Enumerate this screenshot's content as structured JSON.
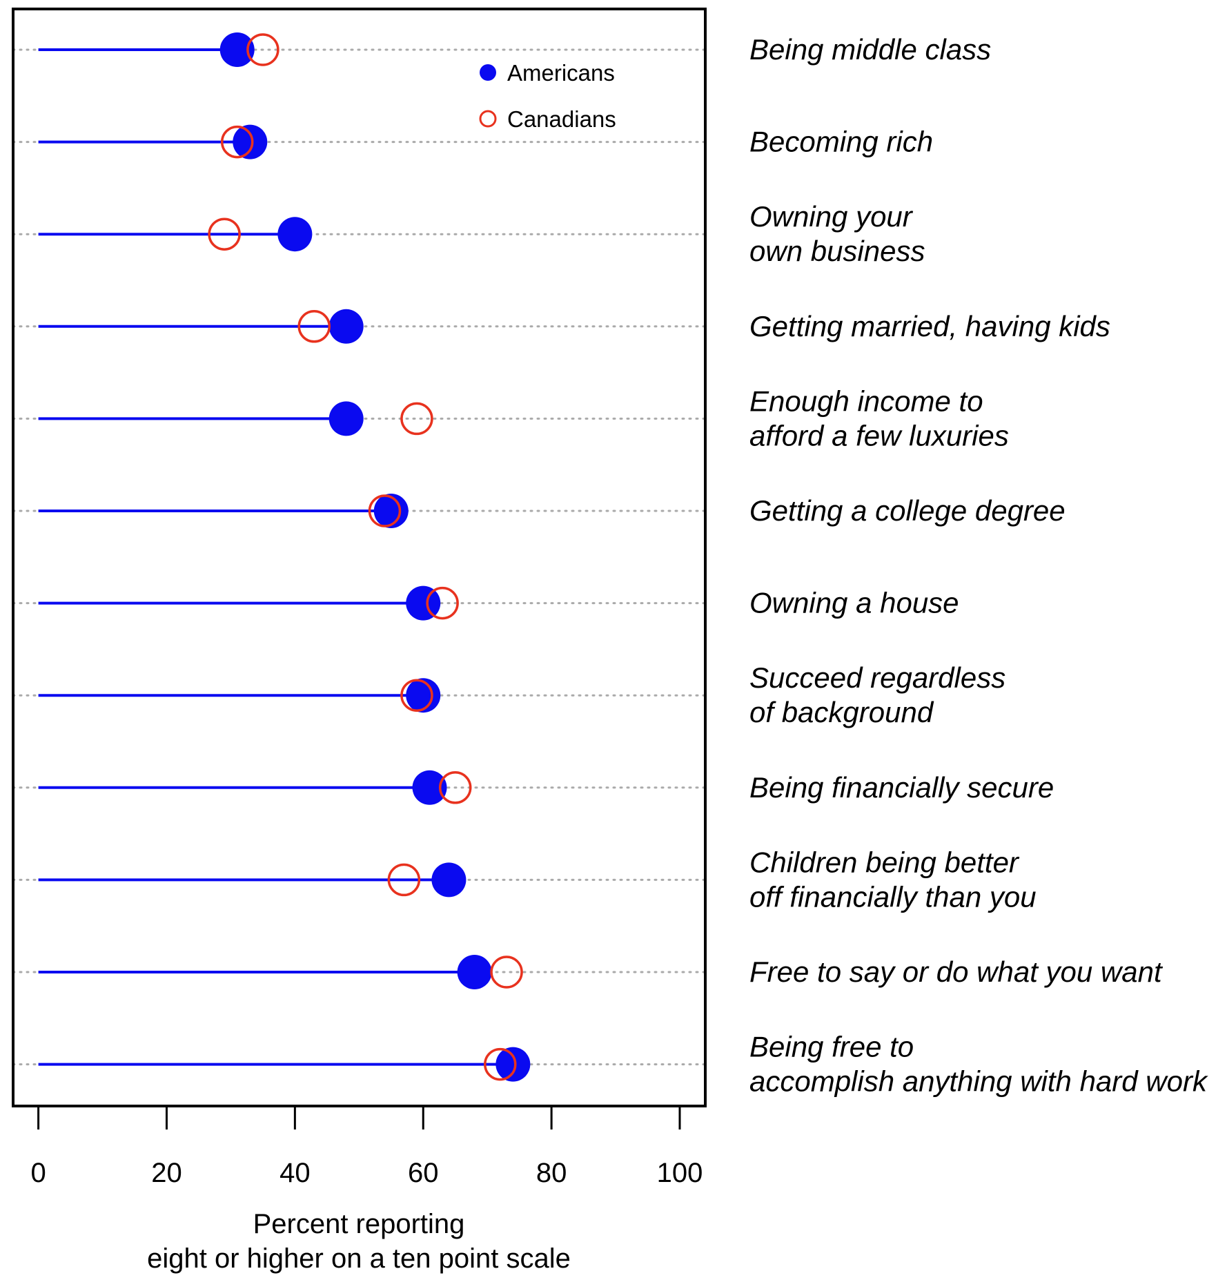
{
  "chart_data": {
    "type": "dot",
    "xlabel": [
      "Percent reporting",
      "eight or higher on a ten point scale"
    ],
    "xlim": [
      0,
      100
    ],
    "xticks": [
      0,
      20,
      40,
      60,
      80,
      100
    ],
    "grid": "dotted horizontal guide per row",
    "legend_placement": "top-right inside plot",
    "categories": [
      [
        "Being middle class"
      ],
      [
        "Becoming rich"
      ],
      [
        "Owning your",
        "own business"
      ],
      [
        "Getting married, having kids"
      ],
      [
        "Enough income to",
        "afford a few luxuries"
      ],
      [
        "Getting a college degree"
      ],
      [
        "Owning a house"
      ],
      [
        "Succeed regardless",
        "of background"
      ],
      [
        "Being financially secure"
      ],
      [
        "Children being better",
        "off financially than you"
      ],
      [
        "Free to say or do what you want"
      ],
      [
        "Being free to",
        "accomplish anything with hard work"
      ]
    ],
    "series": [
      {
        "name": "Americans",
        "marker": "filled-circle",
        "color": "#0a0af0",
        "values": [
          31,
          33,
          40,
          48,
          48,
          55,
          60,
          60,
          61,
          64,
          68,
          74
        ]
      },
      {
        "name": "Canadians",
        "marker": "open-circle",
        "color": "#e8321e",
        "values": [
          35,
          31,
          29,
          43,
          59,
          54,
          63,
          59,
          65,
          57,
          73,
          72
        ]
      }
    ]
  }
}
